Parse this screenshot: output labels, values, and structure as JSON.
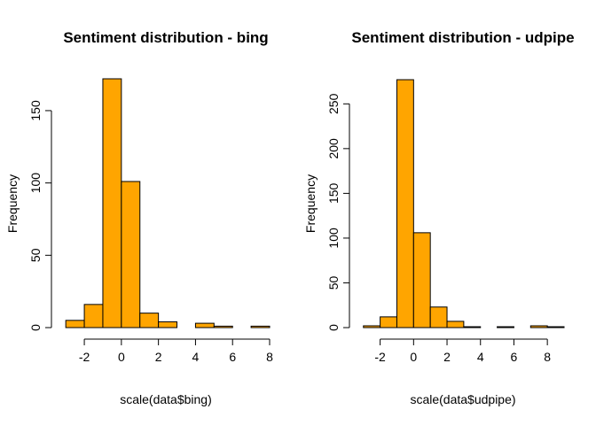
{
  "chart_data": [
    {
      "type": "histogram",
      "title": "Sentiment distribution - bing",
      "xlabel": "scale(data$bing)",
      "ylabel": "Frequency",
      "xlim": [
        -3.2,
        8
      ],
      "ylim": [
        0,
        172
      ],
      "x_ticks": [
        -2,
        0,
        2,
        4,
        6,
        8
      ],
      "x_tick_labels": [
        "-2",
        "0",
        "2",
        "4",
        "6",
        "8"
      ],
      "y_ticks": [
        0,
        50,
        100,
        150
      ],
      "y_tick_labels": [
        "0",
        "50",
        "100",
        "150"
      ],
      "bar_color": "#FFA500",
      "bins": [
        {
          "x0": -3.0,
          "x1": -2.0,
          "count": 5
        },
        {
          "x0": -2.0,
          "x1": -1.0,
          "count": 16
        },
        {
          "x0": -1.0,
          "x1": 0.0,
          "count": 172
        },
        {
          "x0": 0.0,
          "x1": 1.0,
          "count": 101
        },
        {
          "x0": 1.0,
          "x1": 2.0,
          "count": 10
        },
        {
          "x0": 2.0,
          "x1": 3.0,
          "count": 4
        },
        {
          "x0": 3.0,
          "x1": 4.0,
          "count": 0
        },
        {
          "x0": 4.0,
          "x1": 5.0,
          "count": 3
        },
        {
          "x0": 5.0,
          "x1": 6.0,
          "count": 1
        },
        {
          "x0": 6.0,
          "x1": 7.0,
          "count": 0
        },
        {
          "x0": 7.0,
          "x1": 8.0,
          "count": 1
        }
      ]
    },
    {
      "type": "histogram",
      "title": "Sentiment distribution - udpipe",
      "xlabel": "scale(data$udpipe)",
      "ylabel": "Frequency",
      "xlim": [
        -3.2,
        9
      ],
      "ylim": [
        0,
        278
      ],
      "x_ticks": [
        -2,
        0,
        2,
        4,
        6,
        8
      ],
      "x_tick_labels": [
        "-2",
        "0",
        "2",
        "4",
        "6",
        "8"
      ],
      "y_ticks": [
        0,
        50,
        100,
        150,
        200,
        250
      ],
      "y_tick_labels": [
        "0",
        "50",
        "100",
        "150",
        "200",
        "250"
      ],
      "bar_color": "#FFA500",
      "bins": [
        {
          "x0": -3.0,
          "x1": -2.0,
          "count": 2
        },
        {
          "x0": -2.0,
          "x1": -1.0,
          "count": 12
        },
        {
          "x0": -1.0,
          "x1": 0.0,
          "count": 277
        },
        {
          "x0": 0.0,
          "x1": 1.0,
          "count": 106
        },
        {
          "x0": 1.0,
          "x1": 2.0,
          "count": 23
        },
        {
          "x0": 2.0,
          "x1": 3.0,
          "count": 7
        },
        {
          "x0": 3.0,
          "x1": 4.0,
          "count": 1
        },
        {
          "x0": 4.0,
          "x1": 5.0,
          "count": 0
        },
        {
          "x0": 5.0,
          "x1": 6.0,
          "count": 1
        },
        {
          "x0": 6.0,
          "x1": 7.0,
          "count": 0
        },
        {
          "x0": 7.0,
          "x1": 8.0,
          "count": 2
        },
        {
          "x0": 8.0,
          "x1": 9.0,
          "count": 1
        }
      ]
    }
  ]
}
